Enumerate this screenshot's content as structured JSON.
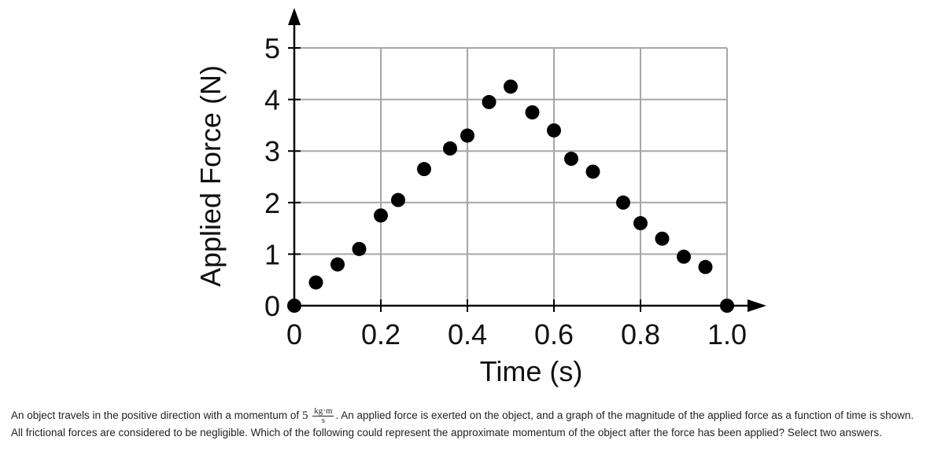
{
  "chart_data": {
    "type": "scatter",
    "xlabel": "Time (s)",
    "ylabel": "Applied Force (N)",
    "xlim": [
      0,
      1.0
    ],
    "ylim": [
      0,
      5
    ],
    "x_ticks": [
      "0",
      "0.2",
      "0.4",
      "0.6",
      "0.8",
      "1.0"
    ],
    "y_ticks": [
      "0",
      "1",
      "2",
      "3",
      "4",
      "5"
    ],
    "grid": true,
    "series": [
      {
        "points": [
          {
            "x": 0.0,
            "y": 0.0
          },
          {
            "x": 0.05,
            "y": 0.45
          },
          {
            "x": 0.1,
            "y": 0.8
          },
          {
            "x": 0.15,
            "y": 1.1
          },
          {
            "x": 0.2,
            "y": 1.75
          },
          {
            "x": 0.24,
            "y": 2.05
          },
          {
            "x": 0.3,
            "y": 2.65
          },
          {
            "x": 0.36,
            "y": 3.05
          },
          {
            "x": 0.4,
            "y": 3.3
          },
          {
            "x": 0.45,
            "y": 3.95
          },
          {
            "x": 0.5,
            "y": 4.25
          },
          {
            "x": 0.55,
            "y": 3.75
          },
          {
            "x": 0.6,
            "y": 3.4
          },
          {
            "x": 0.64,
            "y": 2.85
          },
          {
            "x": 0.69,
            "y": 2.6
          },
          {
            "x": 0.76,
            "y": 2.0
          },
          {
            "x": 0.8,
            "y": 1.6
          },
          {
            "x": 0.85,
            "y": 1.3
          },
          {
            "x": 0.9,
            "y": 0.95
          },
          {
            "x": 0.95,
            "y": 0.75
          },
          {
            "x": 1.0,
            "y": 0.0
          }
        ]
      }
    ]
  },
  "question": {
    "before": "An object travels in the positive direction with a momentum of",
    "momentum_value": "5",
    "unit_numerator": "kg·m",
    "unit_denominator": "s",
    "after": ". An applied force is exerted on the object, and a graph of the magnitude of the applied force as a function of time is shown. All frictional forces are considered to be negligible. Which of the following could represent the approximate momentum of the object after the force has been applied? Select two answers."
  }
}
